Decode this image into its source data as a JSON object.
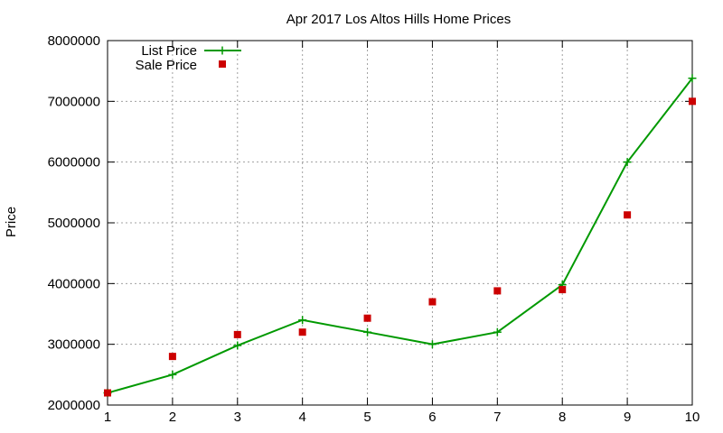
{
  "chart_data": {
    "type": "line",
    "title": "Apr 2017 Los Altos Hills Home Prices",
    "xlabel": "",
    "ylabel": "Price",
    "x": [
      1,
      2,
      3,
      4,
      5,
      6,
      7,
      8,
      9,
      10
    ],
    "xlim": [
      1,
      10
    ],
    "ylim": [
      2000000,
      8000000
    ],
    "xticks": [
      "1",
      "2",
      "3",
      "4",
      "5",
      "6",
      "7",
      "8",
      "9",
      "10"
    ],
    "yticks": [
      "2000000",
      "3000000",
      "4000000",
      "5000000",
      "6000000",
      "7000000",
      "8000000"
    ],
    "grid": true,
    "legend_position": "top-left",
    "series": [
      {
        "name": "List Price",
        "style": "line-with-plus-markers",
        "color": "#009900",
        "values": [
          2200000,
          2500000,
          2980000,
          3400000,
          3200000,
          3000000,
          3200000,
          3980000,
          6000000,
          7380000
        ]
      },
      {
        "name": "Sale Price",
        "style": "square-markers",
        "color": "#cc0000",
        "values": [
          2200000,
          2800000,
          3160000,
          3200000,
          3430000,
          3700000,
          3880000,
          3900000,
          5130000,
          7000000
        ]
      }
    ]
  }
}
